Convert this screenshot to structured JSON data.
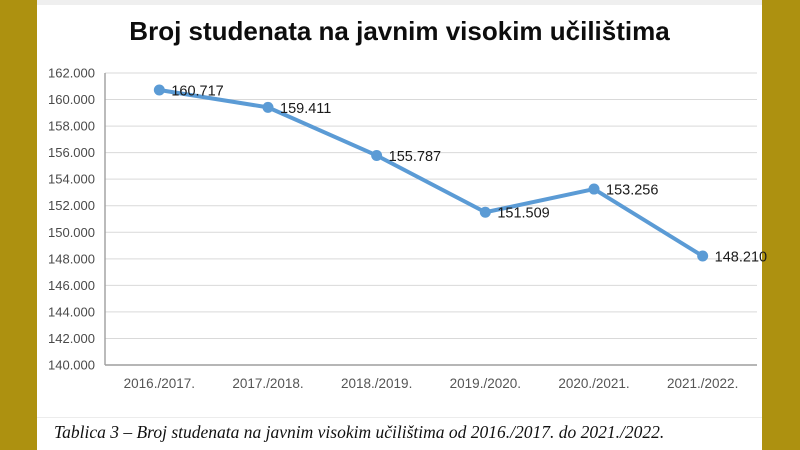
{
  "page": {
    "border_color": "#AD9110",
    "background_color": "#FFFFFF"
  },
  "caption": "Tablica 3 – Broj studenata na javnim visokim učilištima od 2016./2017. do 2021./2022.",
  "chart_data": {
    "type": "line",
    "title": "Broj studenata na javnim visokim učilištima",
    "categories": [
      "2016./2017.",
      "2017./2018.",
      "2018./2019.",
      "2019./2020.",
      "2020./2021.",
      "2021./2022."
    ],
    "series": [
      {
        "name": "Broj studenata",
        "values": [
          160717,
          159411,
          155787,
          151509,
          153256,
          148210
        ]
      }
    ],
    "point_labels": [
      "160.717",
      "159.411",
      "155.787",
      "151.509",
      "153.256",
      "148.210"
    ],
    "xlabel": "",
    "ylabel": "",
    "ylim": [
      140000,
      162000
    ],
    "y_tick_step": 2000,
    "y_tick_labels": [
      "140.000",
      "142.000",
      "144.000",
      "146.000",
      "148.000",
      "150.000",
      "152.000",
      "154.000",
      "156.000",
      "158.000",
      "160.000",
      "162.000"
    ],
    "grid": true,
    "legend": "none",
    "line_color": "#5B9BD5",
    "gridline_color": "#D9D9D9",
    "axis_color": "#9E9E9E",
    "tick_label_color": "#4A4A4A",
    "data_label_color": "#1A1A1A"
  }
}
